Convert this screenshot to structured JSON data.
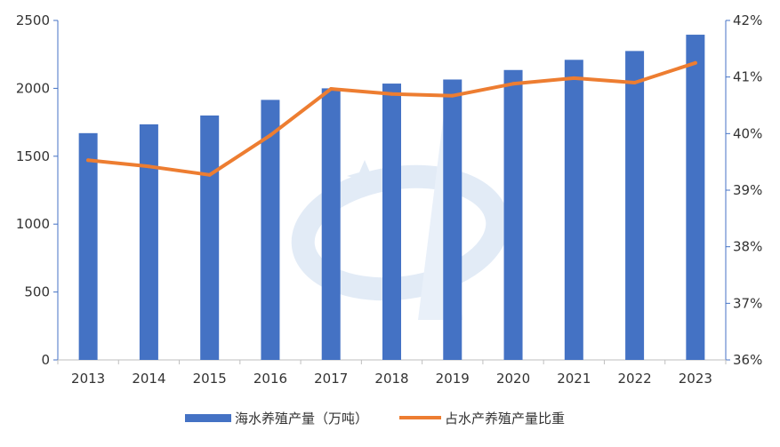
{
  "chart_data": {
    "type": "bar",
    "categories": [
      "2013",
      "2014",
      "2015",
      "2016",
      "2017",
      "2018",
      "2019",
      "2020",
      "2021",
      "2022",
      "2023"
    ],
    "series": [
      {
        "name": "海水养殖产量（万吨）",
        "type": "bar",
        "axis": "left",
        "color": "#4472c4",
        "values": [
          1670,
          1735,
          1800,
          1915,
          2000,
          2035,
          2065,
          2135,
          2210,
          2275,
          2395
        ]
      },
      {
        "name": "占水产养殖产量比重",
        "type": "line",
        "axis": "right",
        "color": "#ed7d31",
        "values": [
          39.53,
          39.42,
          39.27,
          39.97,
          40.79,
          40.7,
          40.67,
          40.88,
          40.98,
          40.9,
          41.25
        ]
      }
    ],
    "y_left": {
      "lim": [
        0,
        2500
      ],
      "ticks": [
        0,
        500,
        1000,
        1500,
        2000,
        2500
      ],
      "tick_labels": [
        "0",
        "500",
        "1000",
        "1500",
        "2000",
        "2500"
      ]
    },
    "y_right": {
      "lim": [
        36,
        42
      ],
      "ticks": [
        36,
        37,
        38,
        39,
        40,
        41,
        42
      ],
      "tick_labels": [
        "36%",
        "37%",
        "38%",
        "39%",
        "40%",
        "41%",
        "42%"
      ]
    },
    "legend_position": "bottom",
    "grid": false
  }
}
